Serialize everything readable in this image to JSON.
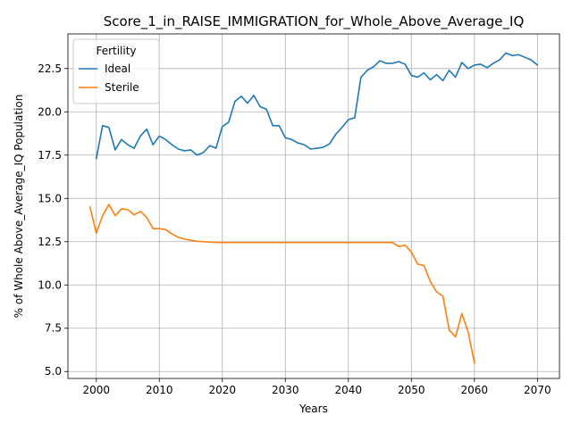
{
  "chart_data": {
    "type": "line",
    "title": "Score_1_in_RAISE_IMMIGRATION_for_Whole_Above_Average_IQ",
    "xlabel": "Years",
    "ylabel": "% of Whole Above_Average_IQ Population",
    "xlim": [
      1995.5,
      2073.5
    ],
    "ylim": [
      4.6,
      24.5
    ],
    "x_ticks": [
      2000,
      2010,
      2020,
      2030,
      2040,
      2050,
      2060,
      2070
    ],
    "x_tick_labels": [
      "2000",
      "2010",
      "2020",
      "2030",
      "2040",
      "2050",
      "2060",
      "2070"
    ],
    "y_ticks": [
      5.0,
      7.5,
      10.0,
      12.5,
      15.0,
      17.5,
      20.0,
      22.5
    ],
    "y_tick_labels": [
      "5.0",
      "7.5",
      "10.0",
      "12.5",
      "15.0",
      "17.5",
      "20.0",
      "22.5"
    ],
    "grid": true,
    "legend": {
      "title": "Fertility",
      "placement": "top-left"
    },
    "series": [
      {
        "name": "Ideal",
        "color": "#1f77b4",
        "x": [
          2000,
          2001,
          2002,
          2003,
          2004,
          2005,
          2006,
          2007,
          2008,
          2009,
          2010,
          2011,
          2012,
          2013,
          2014,
          2015,
          2016,
          2017,
          2018,
          2019,
          2020,
          2021,
          2022,
          2023,
          2024,
          2025,
          2026,
          2027,
          2028,
          2029,
          2030,
          2031,
          2032,
          2033,
          2034,
          2035,
          2036,
          2037,
          2038,
          2039,
          2040,
          2041,
          2042,
          2043,
          2044,
          2045,
          2046,
          2047,
          2048,
          2049,
          2050,
          2051,
          2052,
          2053,
          2054,
          2055,
          2056,
          2057,
          2058,
          2059,
          2060,
          2061,
          2062,
          2063,
          2064,
          2065,
          2066,
          2067,
          2068,
          2069,
          2070
        ],
        "values": [
          17.3,
          19.2,
          19.1,
          17.8,
          18.4,
          18.1,
          17.9,
          18.6,
          19.0,
          18.1,
          18.6,
          18.4,
          18.1,
          17.85,
          17.75,
          17.8,
          17.5,
          17.65,
          18.05,
          17.9,
          19.15,
          19.4,
          20.6,
          20.9,
          20.5,
          20.95,
          20.3,
          20.15,
          19.2,
          19.2,
          18.5,
          18.4,
          18.2,
          18.1,
          17.85,
          17.9,
          17.95,
          18.15,
          18.7,
          19.1,
          19.55,
          19.65,
          22.0,
          22.4,
          22.6,
          22.95,
          22.8,
          22.8,
          22.9,
          22.75,
          22.1,
          22.0,
          22.25,
          21.85,
          22.15,
          21.8,
          22.4,
          22.0,
          22.85,
          22.5,
          22.7,
          22.75,
          22.55,
          22.8,
          23.0,
          23.4,
          23.25,
          23.3,
          23.15,
          23.0,
          22.7
        ]
      },
      {
        "name": "Sterile",
        "color": "#ff7f0e",
        "x": [
          1999,
          2000,
          2001,
          2002,
          2003,
          2004,
          2005,
          2006,
          2007,
          2008,
          2009,
          2010,
          2011,
          2012,
          2013,
          2014,
          2015,
          2016,
          2017,
          2018,
          2019,
          2020,
          2025,
          2030,
          2035,
          2040,
          2045,
          2047,
          2048,
          2049,
          2050,
          2051,
          2052,
          2053,
          2054,
          2055,
          2056,
          2057,
          2058,
          2059,
          2060
        ],
        "values": [
          14.5,
          13.0,
          14.0,
          14.65,
          14.0,
          14.4,
          14.35,
          14.05,
          14.25,
          13.9,
          13.25,
          13.25,
          13.2,
          12.95,
          12.75,
          12.65,
          12.58,
          12.52,
          12.5,
          12.47,
          12.46,
          12.45,
          12.45,
          12.45,
          12.45,
          12.45,
          12.45,
          12.45,
          12.22,
          12.3,
          11.9,
          11.2,
          11.12,
          10.2,
          9.6,
          9.35,
          7.4,
          7.0,
          8.35,
          7.3,
          5.5
        ]
      }
    ]
  }
}
